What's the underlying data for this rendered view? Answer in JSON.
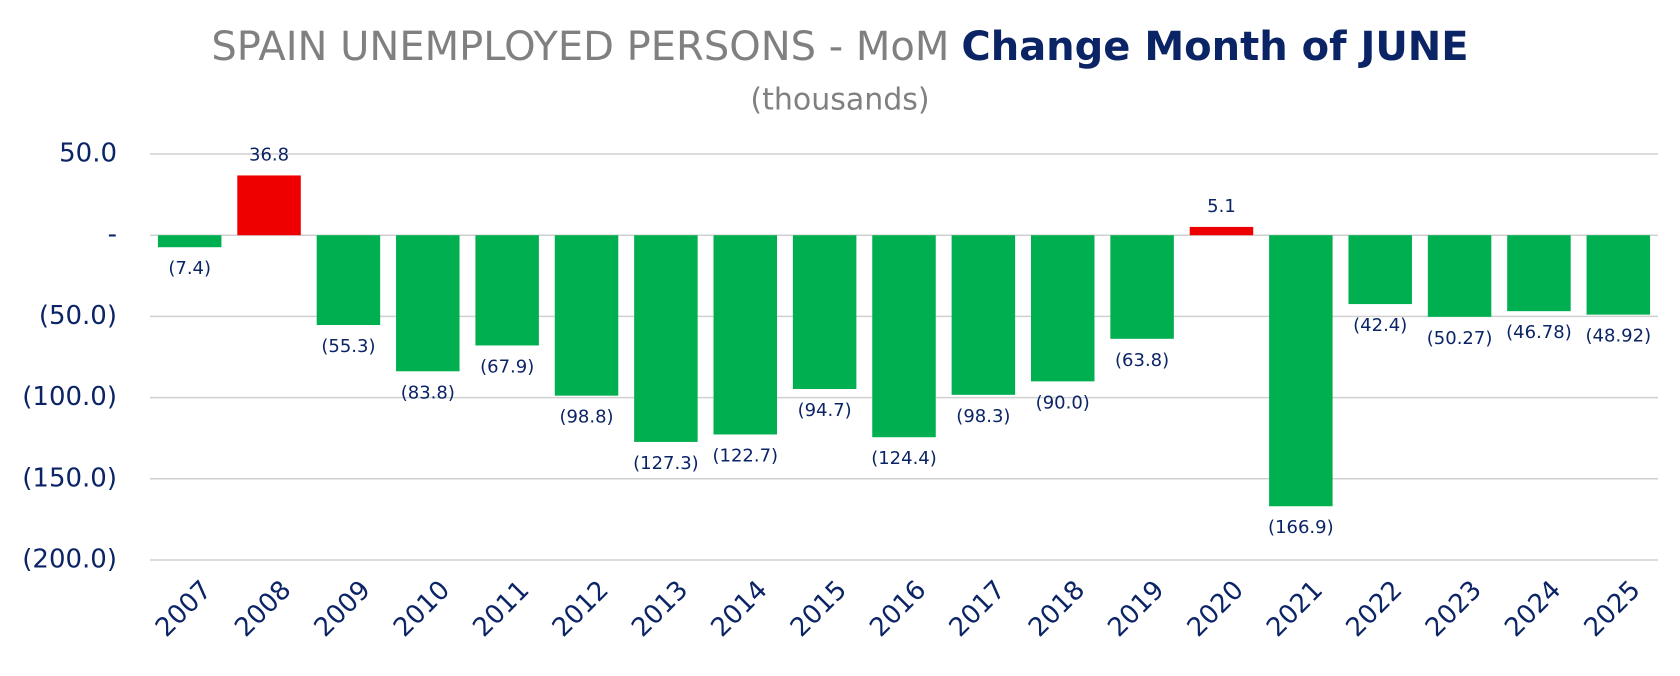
{
  "chart_data": {
    "type": "bar",
    "title": "SPAIN UNEMPLOYED PERSONS  - MoM",
    "title_emphasis": "Change Month of JUNE",
    "subtitle": "(thousands)",
    "categories": [
      "2007",
      "2008",
      "2009",
      "2010",
      "2011",
      "2012",
      "2013",
      "2014",
      "2015",
      "2016",
      "2017",
      "2018",
      "2019",
      "2020",
      "2021",
      "2022",
      "2023",
      "2024",
      "2025"
    ],
    "values": [
      -7.4,
      36.8,
      -55.3,
      -83.8,
      -67.9,
      -98.8,
      -127.3,
      -122.7,
      -94.7,
      -124.4,
      -98.3,
      -90.0,
      -63.8,
      5.1,
      -166.9,
      -42.4,
      -50.27,
      -46.78,
      -48.92
    ],
    "value_labels": [
      "(7.4)",
      "36.8",
      "(55.3)",
      "(83.8)",
      "(67.9)",
      "(98.8)",
      "(127.3)",
      "(122.7)",
      "(94.7)",
      "(124.4)",
      "(98.3)",
      "(90.0)",
      "(63.8)",
      "5.1",
      "(166.9)",
      "(42.4)",
      "(50.27)",
      "(46.78)",
      "(48.92)"
    ],
    "positive_color": "#ee0000",
    "negative_color": "#00b050",
    "ylim": [
      -200,
      50
    ],
    "yticks": [
      {
        "value": 50,
        "label": "50.0"
      },
      {
        "value": 0,
        "label": "-"
      },
      {
        "value": -50,
        "label": "(50.0)"
      },
      {
        "value": -100,
        "label": "(100.0)"
      },
      {
        "value": -150,
        "label": "(150.0)"
      },
      {
        "value": -200,
        "label": "(200.0)"
      }
    ],
    "grid": true
  }
}
